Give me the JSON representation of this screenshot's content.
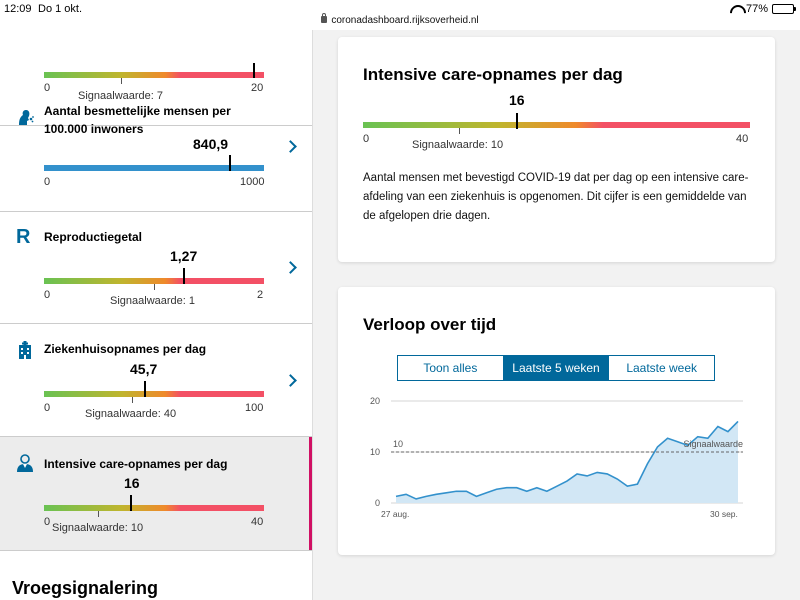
{
  "status": {
    "time": "12:09",
    "date": "Do 1 okt.",
    "url": "coronadashboard.rijksoverheid.nl",
    "battery": "77%",
    "battery_level": 0.77
  },
  "sidebar": {
    "items": [
      {
        "title": "",
        "value": "",
        "min": "0",
        "max": "20",
        "signal": "Signaalwaarde: 7",
        "range": [
          0,
          20
        ],
        "current": 19,
        "signal_value": 7
      },
      {
        "title": "Aantal besmettelijke mensen per 100.000 inwoners",
        "value": "840,9",
        "min": "0",
        "max": "1000",
        "range": [
          0,
          1000
        ],
        "current": 840.9,
        "icon": "virus-person-icon"
      },
      {
        "title": "Reproductiegetal",
        "icon_letter": "R",
        "value": "1,27",
        "min": "0",
        "max": "2",
        "signal": "Signaalwaarde: 1",
        "range": [
          0,
          2
        ],
        "current": 1.27,
        "signal_value": 1
      },
      {
        "title": "Ziekenhuisopnames per dag",
        "value": "45,7",
        "min": "0",
        "max": "100",
        "signal": "Signaalwaarde: 40",
        "range": [
          0,
          100
        ],
        "current": 45.7,
        "signal_value": 40,
        "icon": "hospital-icon"
      },
      {
        "title": "Intensive care-opnames per dag",
        "value": "16",
        "min": "0",
        "max": "40",
        "signal": "Signaalwaarde: 10",
        "range": [
          0,
          40
        ],
        "current": 16,
        "signal_value": 10,
        "icon": "doctor-icon"
      }
    ],
    "section_heading": "Vroegsignalering"
  },
  "ic_card": {
    "title": "Intensive care-opnames per dag",
    "value": "16",
    "min": "0",
    "max": "40",
    "signal": "Signaalwaarde: 10",
    "range": [
      0,
      40
    ],
    "current": 16,
    "signal_value": 10,
    "description": "Aantal mensen met bevestigd COVID-19 dat per dag op een intensive care-afdeling van een ziekenhuis is opgenomen. Dit cijfer is een gemiddelde van de afgelopen drie dagen."
  },
  "trend_card": {
    "title": "Verloop over tijd",
    "tabs": [
      "Toon alles",
      "Laatste 5 weken",
      "Laatste week"
    ],
    "selected_tab": 1
  },
  "chart_data": {
    "type": "area",
    "title": "",
    "xlabel": "",
    "ylabel": "",
    "ylim": [
      0,
      20
    ],
    "y_ticks": [
      "0",
      "10",
      "20"
    ],
    "x_tick_labels": [
      "27 aug.",
      "30 sep."
    ],
    "x": [
      "27 aug.",
      "28 aug.",
      "29 aug.",
      "30 aug.",
      "31 aug.",
      "1 sep.",
      "2 sep.",
      "3 sep.",
      "4 sep.",
      "5 sep.",
      "6 sep.",
      "7 sep.",
      "8 sep.",
      "9 sep.",
      "10 sep.",
      "11 sep.",
      "12 sep.",
      "13 sep.",
      "14 sep.",
      "15 sep.",
      "16 sep.",
      "17 sep.",
      "18 sep.",
      "19 sep.",
      "20 sep.",
      "21 sep.",
      "22 sep.",
      "23 sep.",
      "24 sep.",
      "25 sep.",
      "26 sep.",
      "27 sep.",
      "28 sep.",
      "29 sep.",
      "30 sep."
    ],
    "values": [
      1.3,
      1.7,
      0.8,
      1.3,
      1.7,
      2.0,
      2.3,
      2.3,
      1.3,
      2.0,
      2.7,
      3.0,
      3.0,
      2.3,
      3.0,
      2.3,
      3.3,
      4.3,
      5.7,
      5.3,
      6.0,
      5.7,
      4.7,
      3.3,
      3.7,
      7.7,
      11.0,
      12.7,
      12.0,
      11.3,
      13.0,
      12.7,
      15.0,
      14.0,
      16.0
    ],
    "signal_value": 10,
    "signal_label": "Signaalwaarde",
    "signal_value_label": "10",
    "grid": true,
    "colors": {
      "line": "#3391cc",
      "area": "#d2e7f5",
      "signal": "#666666"
    }
  }
}
